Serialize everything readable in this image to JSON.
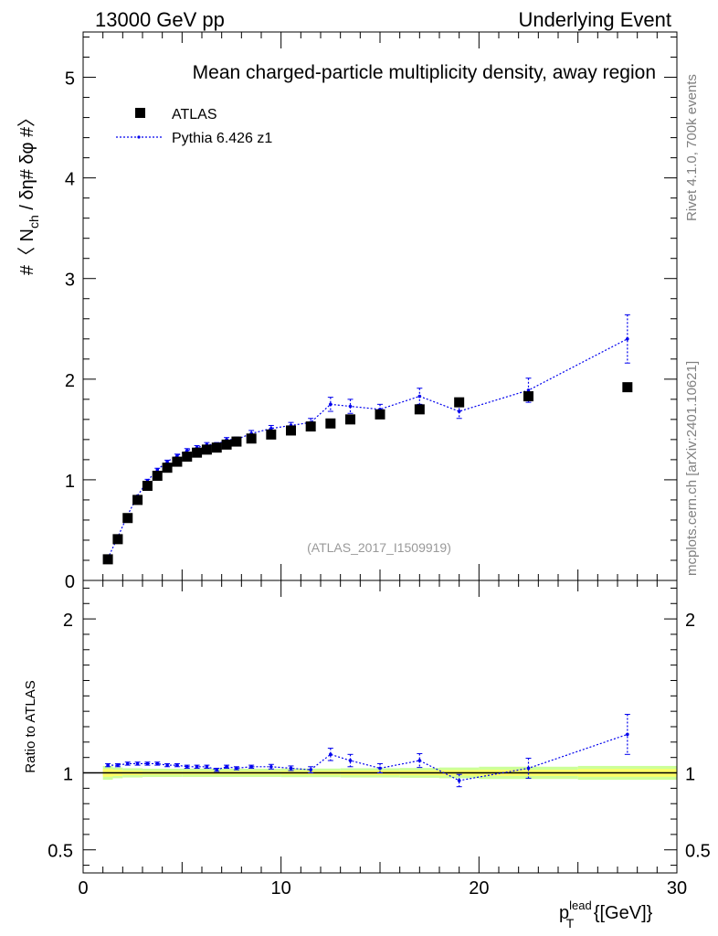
{
  "header": {
    "left": "13000 GeV pp",
    "right": "Underlying Event"
  },
  "side": {
    "rivet": "Rivet 4.1.0,  700k events",
    "mcplots": "mcplots.cern.ch [arXiv:2401.10621]"
  },
  "colors": {
    "data": "#000000",
    "mc": "#0000ee",
    "band_inner": "#ffff66",
    "band_outer": "#ccff99",
    "analysis_label": "#999999"
  },
  "chart_data": [
    {
      "type": "scatter",
      "title": "Mean charged-particle multiplicity density, away region",
      "analysis_label": "(ATLAS_2017_I1509919)",
      "ylabel_parts": {
        "pre": "#〈 N",
        "sub": "ch",
        "post": " / δη# δφ #〉"
      },
      "xlim": [
        0,
        30
      ],
      "ylim": [
        0,
        5.45
      ],
      "yticks": [
        0,
        1,
        2,
        3,
        4,
        5
      ],
      "ytick_labels": [
        "0",
        "1",
        "2",
        "3",
        "4",
        "5"
      ],
      "legend": {
        "placement": "top-left",
        "entries": [
          "ATLAS",
          "Pythia 6.426 z1"
        ]
      },
      "series": [
        {
          "name": "ATLAS",
          "x": [
            1.25,
            1.75,
            2.25,
            2.75,
            3.25,
            3.75,
            4.25,
            4.75,
            5.25,
            5.75,
            6.25,
            6.75,
            7.25,
            7.75,
            8.5,
            9.5,
            10.5,
            11.5,
            12.5,
            13.5,
            15.0,
            17.0,
            19.0,
            22.5,
            27.5
          ],
          "y": [
            0.21,
            0.41,
            0.62,
            0.8,
            0.94,
            1.04,
            1.12,
            1.18,
            1.23,
            1.27,
            1.3,
            1.32,
            1.35,
            1.38,
            1.41,
            1.45,
            1.49,
            1.53,
            1.56,
            1.6,
            1.65,
            1.7,
            1.77,
            1.83,
            1.92
          ]
        },
        {
          "name": "Pythia 6.426 z1",
          "x": [
            1.25,
            1.75,
            2.25,
            2.75,
            3.25,
            3.75,
            4.25,
            4.75,
            5.25,
            5.75,
            6.25,
            6.75,
            7.25,
            7.75,
            8.5,
            9.5,
            10.5,
            11.5,
            12.5,
            13.5,
            15.0,
            17.0,
            19.0,
            22.5,
            27.5
          ],
          "y": [
            0.22,
            0.43,
            0.65,
            0.84,
            0.99,
            1.1,
            1.18,
            1.24,
            1.29,
            1.32,
            1.35,
            1.35,
            1.4,
            1.4,
            1.46,
            1.51,
            1.54,
            1.57,
            1.75,
            1.73,
            1.7,
            1.83,
            1.68,
            1.89,
            2.4
          ],
          "yerr": [
            0.005,
            0.01,
            0.01,
            0.01,
            0.015,
            0.015,
            0.015,
            0.015,
            0.02,
            0.02,
            0.02,
            0.02,
            0.02,
            0.025,
            0.03,
            0.03,
            0.03,
            0.04,
            0.07,
            0.07,
            0.05,
            0.08,
            0.07,
            0.12,
            0.24
          ]
        }
      ]
    },
    {
      "type": "scatter",
      "title": "",
      "ylabel": "Ratio to ATLAS",
      "xlabel_parts": {
        "p": "p",
        "sub": "T",
        "sup": "lead",
        "unit": " {[GeV]}"
      },
      "xlim": [
        0,
        30
      ],
      "ylim": [
        0.35,
        2.25
      ],
      "xticks": [
        0,
        10,
        20,
        30
      ],
      "xtick_labels": [
        "0",
        "10",
        "20",
        "30"
      ],
      "yticks": [
        0.5,
        1,
        2
      ],
      "ytick_labels": [
        "0.5",
        "1",
        "2"
      ],
      "series": [
        {
          "name": "Pythia 6.426 z1 / ATLAS",
          "x": [
            1.25,
            1.75,
            2.25,
            2.75,
            3.25,
            3.75,
            4.25,
            4.75,
            5.25,
            5.75,
            6.25,
            6.75,
            7.25,
            7.75,
            8.5,
            9.5,
            10.5,
            11.5,
            12.5,
            13.5,
            15.0,
            17.0,
            19.0,
            22.5,
            27.5
          ],
          "y": [
            1.05,
            1.05,
            1.06,
            1.06,
            1.06,
            1.06,
            1.05,
            1.05,
            1.04,
            1.04,
            1.04,
            1.02,
            1.04,
            1.03,
            1.04,
            1.04,
            1.03,
            1.02,
            1.12,
            1.08,
            1.03,
            1.08,
            0.95,
            1.03,
            1.25
          ],
          "yerr": [
            0.01,
            0.01,
            0.01,
            0.01,
            0.01,
            0.01,
            0.01,
            0.01,
            0.01,
            0.01,
            0.01,
            0.01,
            0.01,
            0.01,
            0.01,
            0.015,
            0.015,
            0.02,
            0.04,
            0.04,
            0.03,
            0.045,
            0.04,
            0.065,
            0.13
          ]
        },
        {
          "name": "ATLAS uncertainty band",
          "x_edges": [
            1.0,
            1.5,
            2.0,
            3.0,
            5.0,
            10.0,
            13.0,
            16.0,
            18.0,
            20.0,
            25.0,
            30.0
          ],
          "inner": [
            0.025,
            0.02,
            0.015,
            0.012,
            0.012,
            0.013,
            0.015,
            0.016,
            0.018,
            0.02,
            0.025
          ],
          "outer": [
            0.045,
            0.035,
            0.03,
            0.027,
            0.027,
            0.028,
            0.03,
            0.032,
            0.035,
            0.04,
            0.045
          ]
        }
      ]
    }
  ]
}
